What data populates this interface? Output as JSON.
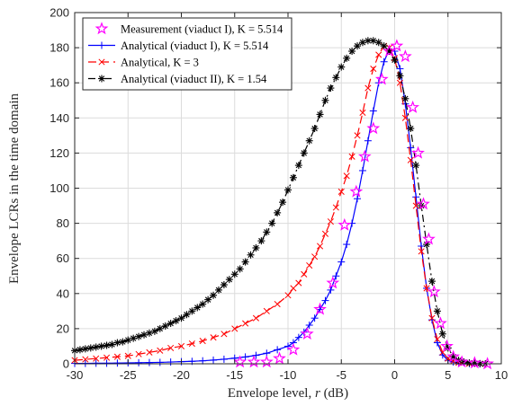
{
  "chart_data": {
    "type": "line",
    "xlabel": "Envelope level, r (dB)",
    "xlabel_parts": [
      "Envelope level, ",
      "r",
      " (dB)"
    ],
    "ylabel": "Envelope LCRs in the time domain",
    "xlim": [
      -30,
      10
    ],
    "ylim": [
      0,
      200
    ],
    "xticks": [
      -30,
      -25,
      -20,
      -15,
      -10,
      -5,
      0,
      5,
      10
    ],
    "yticks": [
      0,
      20,
      40,
      60,
      80,
      100,
      120,
      140,
      160,
      180,
      200
    ],
    "grid": true,
    "legend_position": "top-left",
    "series": [
      {
        "name": "Measurement (viaduct I), K = 5.514",
        "color": "#ff00ff",
        "line": "none",
        "marker": "star",
        "x": [
          -14.5,
          -13.2,
          -12,
          -10.8,
          -9.5,
          -8.2,
          -7,
          -5.8,
          -4.7,
          -3.6,
          -2.8,
          -2,
          -1.2,
          -0.5,
          0.2,
          1,
          1.7,
          2.2,
          2.7,
          3.2,
          3.7,
          4.3,
          4.9,
          5.5,
          6.3,
          7.5,
          8.7
        ],
        "y": [
          1,
          1,
          1,
          3,
          8,
          17,
          31,
          46,
          79,
          98,
          118,
          134,
          162,
          178,
          181,
          175,
          146,
          120,
          91,
          71,
          41,
          23,
          10,
          4,
          1,
          0.5,
          0
        ]
      },
      {
        "name": "Analytical (viaduct I), K = 5.514",
        "color": "#0000ff",
        "line": "solid",
        "marker": "plus",
        "x": [
          -30,
          -29,
          -28,
          -27,
          -26,
          -25,
          -24,
          -23,
          -22,
          -21,
          -20,
          -19,
          -18,
          -17,
          -16,
          -15,
          -14,
          -13,
          -12,
          -11,
          -10,
          -9.5,
          -9,
          -8.5,
          -8,
          -7.5,
          -7,
          -6.5,
          -6,
          -5.5,
          -5,
          -4.5,
          -4,
          -3.5,
          -3,
          -2.5,
          -2,
          -1.5,
          -1,
          -0.5,
          0,
          0.5,
          1,
          1.5,
          2,
          2.5,
          3,
          3.5,
          4,
          4.5,
          5,
          5.5,
          6,
          7,
          8
        ],
        "y": [
          0.2,
          0.2,
          0.3,
          0.3,
          0.4,
          0.5,
          0.6,
          0.7,
          0.8,
          1,
          1.2,
          1.4,
          1.7,
          2.1,
          2.6,
          3.2,
          3.9,
          4.8,
          6,
          8,
          10,
          12,
          15,
          18,
          22,
          26,
          31,
          36,
          42,
          50,
          58,
          68,
          80,
          94,
          110,
          127,
          144,
          160,
          172,
          179,
          178,
          168,
          148,
          123,
          95,
          67,
          43,
          25,
          12,
          5,
          2,
          1,
          0.4,
          0.1,
          0
        ]
      },
      {
        "name": "Analytical, K = 3",
        "color": "#ff0000",
        "line": "dashed",
        "marker": "x",
        "x": [
          -30,
          -29,
          -28,
          -27,
          -26,
          -25,
          -24,
          -23,
          -22,
          -21,
          -20,
          -19,
          -18,
          -17,
          -16,
          -15,
          -14,
          -13,
          -12,
          -11,
          -10,
          -9.5,
          -9,
          -8.5,
          -8,
          -7.5,
          -7,
          -6.5,
          -6,
          -5.5,
          -5,
          -4.5,
          -4,
          -3.5,
          -3,
          -2.5,
          -2,
          -1.5,
          -1,
          -0.5,
          0,
          0.5,
          1,
          1.5,
          2,
          2.5,
          3,
          3.5,
          4,
          4.5,
          5,
          5.5,
          6,
          7,
          8
        ],
        "y": [
          2,
          2.5,
          3,
          3.5,
          4,
          4.5,
          5.5,
          6.5,
          7.5,
          9,
          10,
          11.5,
          13,
          15,
          17,
          20,
          23,
          26,
          30,
          34,
          39,
          43,
          46,
          51,
          56,
          61,
          67,
          74,
          81,
          89,
          98,
          107,
          118,
          130,
          143,
          157,
          168,
          176,
          181,
          180,
          174,
          160,
          140,
          116,
          90,
          64,
          43,
          26,
          14,
          6.5,
          3,
          1.5,
          0.6,
          0.1,
          0
        ]
      },
      {
        "name": "Analytical (viaduct II), K = 1.54",
        "color": "#000000",
        "line": "dashdot",
        "marker": "asterisk",
        "x": [
          -30,
          -29.5,
          -29,
          -28.5,
          -28,
          -27.5,
          -27,
          -26.5,
          -26,
          -25.5,
          -25,
          -24.5,
          -24,
          -23.5,
          -23,
          -22.5,
          -22,
          -21.5,
          -21,
          -20.5,
          -20,
          -19.5,
          -19,
          -18.5,
          -18,
          -17.5,
          -17,
          -16.5,
          -16,
          -15.5,
          -15,
          -14.5,
          -14,
          -13.5,
          -13,
          -12.5,
          -12,
          -11.5,
          -11,
          -10.5,
          -10,
          -9.5,
          -9,
          -8.5,
          -8,
          -7.5,
          -7,
          -6.5,
          -6,
          -5.5,
          -5,
          -4.5,
          -4,
          -3.5,
          -3,
          -2.5,
          -2,
          -1.5,
          -1,
          -0.5,
          0,
          0.5,
          1,
          1.5,
          2,
          2.5,
          3,
          3.5,
          4,
          4.5,
          5,
          5.5,
          6,
          6.5,
          7,
          7.5,
          8,
          8.5
        ],
        "y": [
          7.5,
          8,
          8.5,
          9,
          9.5,
          10,
          10.5,
          11,
          12,
          12.5,
          13.5,
          14.5,
          15.5,
          16.5,
          17.5,
          18.5,
          20,
          21.5,
          23,
          24.5,
          26,
          28,
          30,
          32,
          34,
          36.5,
          39,
          42,
          45,
          48,
          51,
          54,
          58,
          62,
          66,
          70,
          75,
          80,
          86,
          92,
          99,
          106,
          113,
          120,
          127,
          134,
          142,
          150,
          157,
          163,
          169,
          174,
          178,
          181,
          183,
          184,
          184,
          183,
          181,
          178,
          173,
          164,
          151,
          134,
          113,
          90,
          68,
          47,
          30,
          17,
          9,
          4,
          2,
          1,
          0.5,
          0.3,
          0.1,
          0
        ]
      }
    ]
  }
}
